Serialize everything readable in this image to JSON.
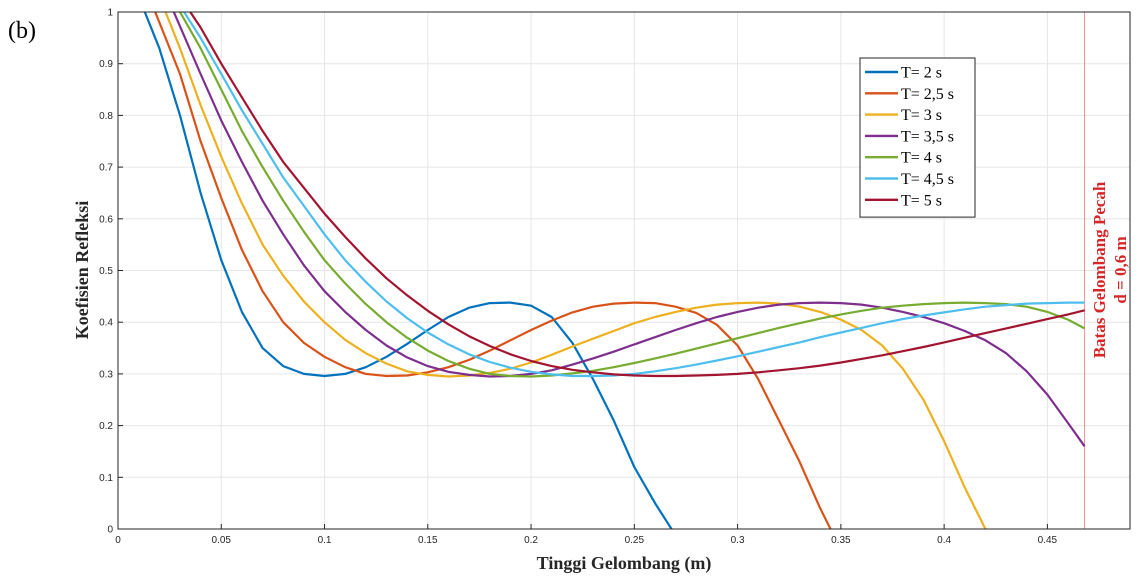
{
  "panel_label": "(b)",
  "chart_data": {
    "type": "line",
    "title": "",
    "xlabel": "Tinggi Gelombang (m)",
    "ylabel": "Koefisien Refleksi",
    "xlim": [
      0,
      0.49
    ],
    "ylim": [
      0,
      1
    ],
    "xticks": [
      "0",
      "0.05",
      "0.1",
      "0.15",
      "0.2",
      "0.25",
      "0.3",
      "0.35",
      "0.4",
      "0.45"
    ],
    "yticks": [
      "0",
      "0.1",
      "0.2",
      "0.3",
      "0.4",
      "0.5",
      "0.6",
      "0.7",
      "0.8",
      "0.9",
      "1"
    ],
    "grid": true,
    "legend_position": "top-right",
    "limit_line": {
      "x": 0.468,
      "label_line1": "Batas Gelombang Pecah",
      "label_line2": "d = 0,6 m",
      "color": "#d62728"
    },
    "series": [
      {
        "name": "T= 2 s",
        "color": "#0072BD",
        "x": [
          0.013,
          0.02,
          0.03,
          0.04,
          0.05,
          0.06,
          0.07,
          0.08,
          0.09,
          0.1,
          0.11,
          0.12,
          0.13,
          0.14,
          0.15,
          0.16,
          0.17,
          0.18,
          0.19,
          0.2,
          0.21,
          0.22,
          0.23,
          0.24,
          0.25,
          0.26,
          0.268
        ],
        "y": [
          1.0,
          0.93,
          0.8,
          0.65,
          0.52,
          0.42,
          0.35,
          0.315,
          0.3,
          0.296,
          0.3,
          0.313,
          0.333,
          0.358,
          0.385,
          0.41,
          0.428,
          0.437,
          0.438,
          0.432,
          0.41,
          0.36,
          0.29,
          0.21,
          0.12,
          0.05,
          0.0
        ]
      },
      {
        "name": "T= 2,5 s",
        "color": "#D95319",
        "x": [
          0.018,
          0.03,
          0.04,
          0.05,
          0.06,
          0.07,
          0.08,
          0.09,
          0.1,
          0.11,
          0.12,
          0.13,
          0.14,
          0.15,
          0.16,
          0.17,
          0.18,
          0.19,
          0.2,
          0.21,
          0.22,
          0.23,
          0.24,
          0.25,
          0.26,
          0.27,
          0.28,
          0.29,
          0.3,
          0.31,
          0.32,
          0.33,
          0.34,
          0.345
        ],
        "y": [
          1.0,
          0.88,
          0.75,
          0.64,
          0.54,
          0.46,
          0.4,
          0.36,
          0.333,
          0.313,
          0.3,
          0.296,
          0.297,
          0.303,
          0.313,
          0.327,
          0.345,
          0.365,
          0.385,
          0.403,
          0.419,
          0.43,
          0.436,
          0.438,
          0.437,
          0.43,
          0.418,
          0.395,
          0.355,
          0.29,
          0.21,
          0.13,
          0.04,
          0.0
        ]
      },
      {
        "name": "T= 3 s",
        "color": "#EDB120",
        "x": [
          0.023,
          0.03,
          0.04,
          0.05,
          0.06,
          0.07,
          0.08,
          0.09,
          0.1,
          0.11,
          0.12,
          0.13,
          0.14,
          0.15,
          0.16,
          0.17,
          0.18,
          0.19,
          0.2,
          0.21,
          0.22,
          0.23,
          0.24,
          0.25,
          0.26,
          0.27,
          0.28,
          0.29,
          0.3,
          0.31,
          0.32,
          0.33,
          0.34,
          0.35,
          0.36,
          0.37,
          0.38,
          0.39,
          0.4,
          0.41,
          0.42
        ],
        "y": [
          1.0,
          0.93,
          0.82,
          0.72,
          0.63,
          0.55,
          0.49,
          0.44,
          0.4,
          0.366,
          0.34,
          0.32,
          0.305,
          0.298,
          0.295,
          0.297,
          0.302,
          0.31,
          0.322,
          0.337,
          0.353,
          0.368,
          0.383,
          0.398,
          0.41,
          0.42,
          0.428,
          0.434,
          0.437,
          0.438,
          0.436,
          0.43,
          0.42,
          0.405,
          0.385,
          0.355,
          0.31,
          0.25,
          0.17,
          0.08,
          0.0
        ]
      },
      {
        "name": "T= 3,5 s",
        "color": "#7E2F8E",
        "x": [
          0.027,
          0.04,
          0.05,
          0.06,
          0.07,
          0.08,
          0.09,
          0.1,
          0.11,
          0.12,
          0.13,
          0.14,
          0.15,
          0.16,
          0.17,
          0.18,
          0.19,
          0.2,
          0.21,
          0.22,
          0.23,
          0.24,
          0.25,
          0.26,
          0.27,
          0.28,
          0.29,
          0.3,
          0.31,
          0.32,
          0.33,
          0.34,
          0.35,
          0.36,
          0.37,
          0.38,
          0.39,
          0.4,
          0.41,
          0.42,
          0.43,
          0.44,
          0.45,
          0.46,
          0.468
        ],
        "y": [
          1.0,
          0.88,
          0.79,
          0.71,
          0.635,
          0.57,
          0.51,
          0.46,
          0.42,
          0.385,
          0.355,
          0.332,
          0.315,
          0.304,
          0.298,
          0.295,
          0.296,
          0.3,
          0.307,
          0.318,
          0.33,
          0.343,
          0.357,
          0.371,
          0.385,
          0.398,
          0.41,
          0.42,
          0.428,
          0.434,
          0.437,
          0.438,
          0.437,
          0.434,
          0.428,
          0.42,
          0.41,
          0.398,
          0.383,
          0.365,
          0.34,
          0.305,
          0.26,
          0.205,
          0.16
        ]
      },
      {
        "name": "T= 4 s",
        "color": "#77AC30",
        "x": [
          0.03,
          0.04,
          0.05,
          0.06,
          0.07,
          0.08,
          0.09,
          0.1,
          0.11,
          0.12,
          0.13,
          0.14,
          0.15,
          0.16,
          0.17,
          0.18,
          0.19,
          0.2,
          0.21,
          0.22,
          0.23,
          0.24,
          0.25,
          0.26,
          0.27,
          0.28,
          0.29,
          0.3,
          0.31,
          0.32,
          0.33,
          0.34,
          0.35,
          0.36,
          0.37,
          0.38,
          0.39,
          0.4,
          0.41,
          0.42,
          0.43,
          0.44,
          0.45,
          0.46,
          0.468
        ],
        "y": [
          1.0,
          0.93,
          0.85,
          0.77,
          0.7,
          0.635,
          0.575,
          0.52,
          0.475,
          0.435,
          0.4,
          0.37,
          0.345,
          0.325,
          0.31,
          0.3,
          0.296,
          0.295,
          0.297,
          0.301,
          0.306,
          0.313,
          0.321,
          0.33,
          0.339,
          0.349,
          0.359,
          0.369,
          0.379,
          0.389,
          0.398,
          0.407,
          0.415,
          0.422,
          0.428,
          0.432,
          0.435,
          0.437,
          0.438,
          0.437,
          0.435,
          0.43,
          0.42,
          0.405,
          0.388
        ]
      },
      {
        "name": "T= 4,5 s",
        "color": "#4DBEEE",
        "x": [
          0.032,
          0.04,
          0.05,
          0.06,
          0.07,
          0.08,
          0.09,
          0.1,
          0.11,
          0.12,
          0.13,
          0.14,
          0.15,
          0.16,
          0.17,
          0.18,
          0.19,
          0.2,
          0.21,
          0.22,
          0.23,
          0.24,
          0.25,
          0.26,
          0.27,
          0.28,
          0.29,
          0.3,
          0.31,
          0.32,
          0.33,
          0.34,
          0.35,
          0.36,
          0.37,
          0.38,
          0.39,
          0.4,
          0.41,
          0.42,
          0.43,
          0.44,
          0.45,
          0.46,
          0.468
        ],
        "y": [
          1.0,
          0.95,
          0.88,
          0.81,
          0.745,
          0.68,
          0.625,
          0.57,
          0.52,
          0.478,
          0.44,
          0.408,
          0.38,
          0.357,
          0.338,
          0.323,
          0.312,
          0.304,
          0.299,
          0.296,
          0.296,
          0.297,
          0.3,
          0.305,
          0.311,
          0.318,
          0.326,
          0.334,
          0.343,
          0.352,
          0.361,
          0.371,
          0.38,
          0.389,
          0.398,
          0.406,
          0.413,
          0.419,
          0.425,
          0.43,
          0.433,
          0.436,
          0.437,
          0.438,
          0.438
        ]
      },
      {
        "name": "T= 5 s",
        "color": "#A2142F",
        "x": [
          0.035,
          0.04,
          0.05,
          0.06,
          0.07,
          0.08,
          0.09,
          0.1,
          0.11,
          0.12,
          0.13,
          0.14,
          0.15,
          0.16,
          0.17,
          0.18,
          0.19,
          0.2,
          0.21,
          0.22,
          0.23,
          0.24,
          0.25,
          0.26,
          0.27,
          0.28,
          0.29,
          0.3,
          0.31,
          0.32,
          0.33,
          0.34,
          0.35,
          0.36,
          0.37,
          0.38,
          0.39,
          0.4,
          0.41,
          0.42,
          0.43,
          0.44,
          0.45,
          0.46,
          0.468
        ],
        "y": [
          1.0,
          0.97,
          0.9,
          0.835,
          0.77,
          0.71,
          0.66,
          0.61,
          0.565,
          0.523,
          0.485,
          0.452,
          0.422,
          0.396,
          0.373,
          0.354,
          0.338,
          0.325,
          0.315,
          0.308,
          0.303,
          0.299,
          0.297,
          0.296,
          0.296,
          0.297,
          0.298,
          0.3,
          0.303,
          0.307,
          0.311,
          0.316,
          0.322,
          0.329,
          0.336,
          0.344,
          0.352,
          0.361,
          0.37,
          0.379,
          0.388,
          0.397,
          0.406,
          0.415,
          0.423
        ]
      }
    ]
  }
}
